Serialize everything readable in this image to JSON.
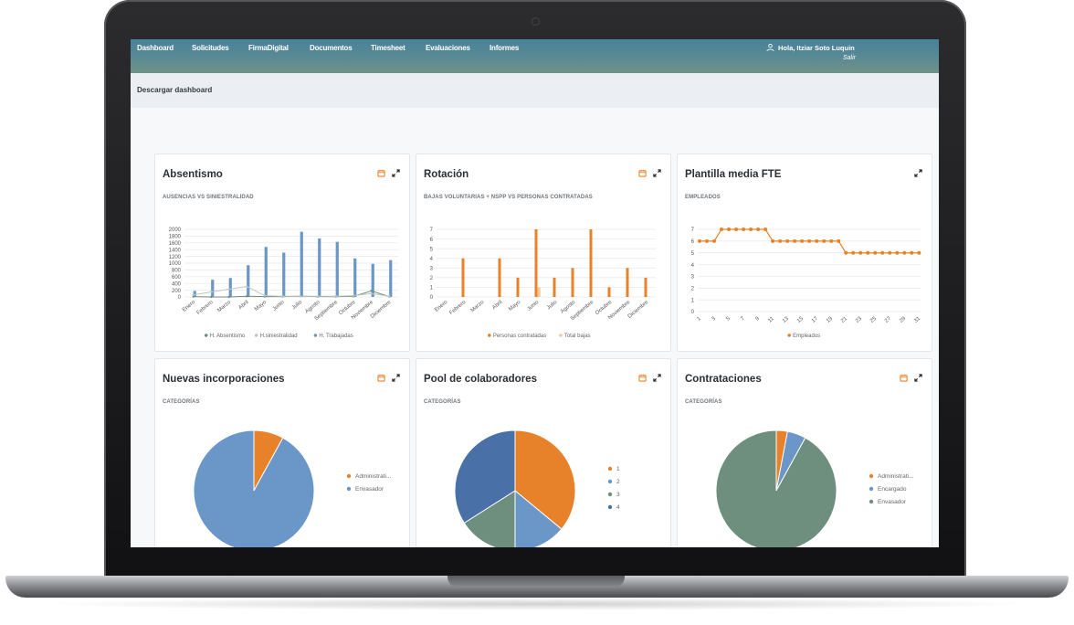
{
  "nav": {
    "items": [
      "Dashboard",
      "Solicitudes",
      "FirmaDigital",
      "Documentos",
      "Timesheet",
      "Evaluaciones",
      "Informes"
    ],
    "greeting": "Hola, Itziar Soto Luquin",
    "logout": "Salir"
  },
  "subbar": {
    "download_label": "Descargar dashboard"
  },
  "colors": {
    "orange": "#e8822a",
    "blue": "#6a96c8",
    "darkblue": "#4a70a8",
    "green": "#6e8f7e",
    "nav_start": "#48829c",
    "nav_end": "#719287"
  },
  "icons": {
    "calendar": "calendar-icon",
    "expand": "expand-icon",
    "user": "user-icon"
  },
  "cards": {
    "absentismo": {
      "title": "Absentismo",
      "subtitle": "AUSENCIAS VS SINIESTRALIDAD"
    },
    "rotacion": {
      "title": "Rotación",
      "subtitle": "BAJAS VOLUNTARIAS + NSPP VS PERSONAS CONTRATADAS"
    },
    "plantilla": {
      "title": "Plantilla media FTE",
      "subtitle": "EMPLEADOS"
    },
    "nuevas": {
      "title": "Nuevas incorporaciones",
      "subtitle": "CATEGORÍAS"
    },
    "pool": {
      "title": "Pool de colaboradores",
      "subtitle": "CATEGORÍAS"
    },
    "contrataciones": {
      "title": "Contrataciones",
      "subtitle": "CATEGORÍAS"
    }
  },
  "chart_data": [
    {
      "id": "absentismo",
      "type": "bar",
      "categories": [
        "Enero",
        "Febrero",
        "Marzo",
        "Abril",
        "Mayo",
        "Junio",
        "Julio",
        "Agosto",
        "Septiembre",
        "Octubre",
        "Noviembre",
        "Diciembre"
      ],
      "ylim": [
        0,
        2000
      ],
      "yticks": [
        0,
        200,
        400,
        600,
        800,
        1000,
        1200,
        1400,
        1600,
        1800,
        2000
      ],
      "series": [
        {
          "name": "H. Absentismo",
          "type": "line",
          "color": "#6e8f7e",
          "values": [
            10,
            0,
            0,
            20,
            10,
            10,
            20,
            10,
            10,
            20,
            180,
            10
          ]
        },
        {
          "name": "H.siniestralidad",
          "type": "line",
          "color": "#b9c9bf",
          "values": [
            60,
            150,
            230,
            310,
            40,
            20,
            20,
            20,
            20,
            40,
            100,
            20
          ]
        },
        {
          "name": "H. Trabajadas",
          "type": "bar",
          "color": "#6a96c8",
          "values": [
            180,
            510,
            560,
            940,
            1480,
            1310,
            1930,
            1730,
            1630,
            1140,
            980,
            1090
          ]
        }
      ],
      "legend": "bottom"
    },
    {
      "id": "rotacion",
      "type": "bar",
      "categories": [
        "Enero",
        "Febrero",
        "Marzo",
        "Abril",
        "Mayo",
        "Junio",
        "Julio",
        "Agosto",
        "Septiembre",
        "Octubre",
        "Noviembre",
        "Diciembre"
      ],
      "ylim": [
        0,
        7
      ],
      "yticks": [
        0,
        1,
        2,
        3,
        4,
        5,
        6,
        7
      ],
      "series": [
        {
          "name": "Personas contratadas",
          "color": "#e8822a",
          "values": [
            0,
            4,
            0,
            4,
            2,
            7,
            2,
            3,
            7,
            1,
            3,
            2
          ]
        },
        {
          "name": "Total bajas",
          "color": "#f3c8a0",
          "values": [
            0,
            0,
            0,
            0,
            0,
            1,
            0,
            0,
            0,
            0,
            0,
            0
          ]
        }
      ],
      "legend": "bottom"
    },
    {
      "id": "plantilla",
      "type": "line",
      "x": [
        1,
        2,
        3,
        4,
        5,
        6,
        7,
        8,
        9,
        10,
        11,
        12,
        13,
        14,
        15,
        16,
        17,
        18,
        19,
        20,
        21,
        22,
        23,
        24,
        25,
        26,
        27,
        28,
        29,
        30,
        31
      ],
      "xticks": [
        1,
        3,
        5,
        7,
        9,
        11,
        13,
        15,
        17,
        19,
        21,
        23,
        25,
        27,
        29,
        31
      ],
      "ylim": [
        0,
        7
      ],
      "yticks": [
        0,
        1,
        2,
        3,
        4,
        5,
        6,
        7
      ],
      "series": [
        {
          "name": "Empleados",
          "color": "#e8822a",
          "values": [
            6,
            6,
            6,
            7,
            7,
            7,
            7,
            7,
            7,
            7,
            6,
            6,
            6,
            6,
            6,
            6,
            6,
            6,
            6,
            6,
            5,
            5,
            5,
            5,
            5,
            5,
            5,
            5,
            5,
            5,
            5
          ]
        }
      ],
      "legend": "bottom"
    },
    {
      "id": "nuevas",
      "type": "pie",
      "labels": [
        "Administrati...",
        "Envasador"
      ],
      "values": [
        8,
        92
      ],
      "colors": [
        "#e8822a",
        "#6a96c8"
      ],
      "legend": "right"
    },
    {
      "id": "pool",
      "type": "pie",
      "labels": [
        "1",
        "2",
        "3",
        "4"
      ],
      "values": [
        36,
        14,
        16,
        34
      ],
      "colors": [
        "#e8822a",
        "#6a96c8",
        "#6e8f7e",
        "#4a70a8"
      ],
      "legend": "right"
    },
    {
      "id": "contrataciones",
      "type": "pie",
      "labels": [
        "Administrati...",
        "Encargado",
        "Envasador"
      ],
      "values": [
        3,
        5,
        92
      ],
      "colors": [
        "#e8822a",
        "#6a96c8",
        "#6e8f7e"
      ],
      "legend": "right"
    }
  ]
}
